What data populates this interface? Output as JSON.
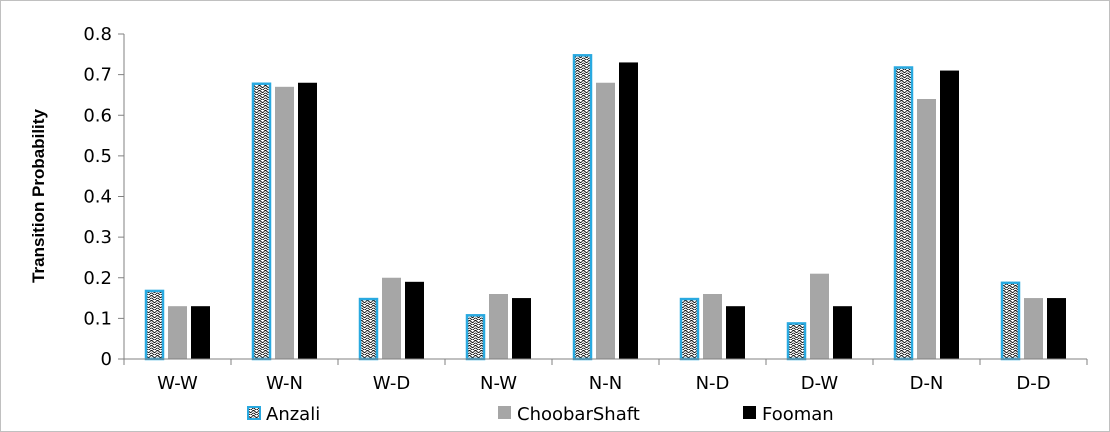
{
  "chart_data": {
    "type": "bar",
    "title": "",
    "xlabel": "",
    "ylabel": "Transition Probability",
    "ylim": [
      0,
      0.8
    ],
    "yticks": [
      "0",
      "0.1",
      "0.2",
      "0.3",
      "0.4",
      "0.5",
      "0.6",
      "0.7",
      "0.8"
    ],
    "categories": [
      "W-W",
      "W-N",
      "W-D",
      "N-W",
      "N-N",
      "N-D",
      "D-W",
      "D-N",
      "D-D"
    ],
    "series": [
      {
        "name": "Anzali",
        "values": [
          0.17,
          0.68,
          0.15,
          0.11,
          0.75,
          0.15,
          0.09,
          0.72,
          0.19
        ],
        "color": "#ffffff",
        "stroke": "#29a9e0",
        "pattern": "wave"
      },
      {
        "name": "ChoobarShaft",
        "values": [
          0.13,
          0.67,
          0.2,
          0.16,
          0.68,
          0.16,
          0.21,
          0.64,
          0.15
        ],
        "color": "#a6a6a6"
      },
      {
        "name": "Fooman",
        "values": [
          0.13,
          0.68,
          0.19,
          0.15,
          0.73,
          0.13,
          0.13,
          0.71,
          0.15
        ],
        "color": "#000000"
      }
    ],
    "grid": false,
    "legend": "bottom"
  }
}
